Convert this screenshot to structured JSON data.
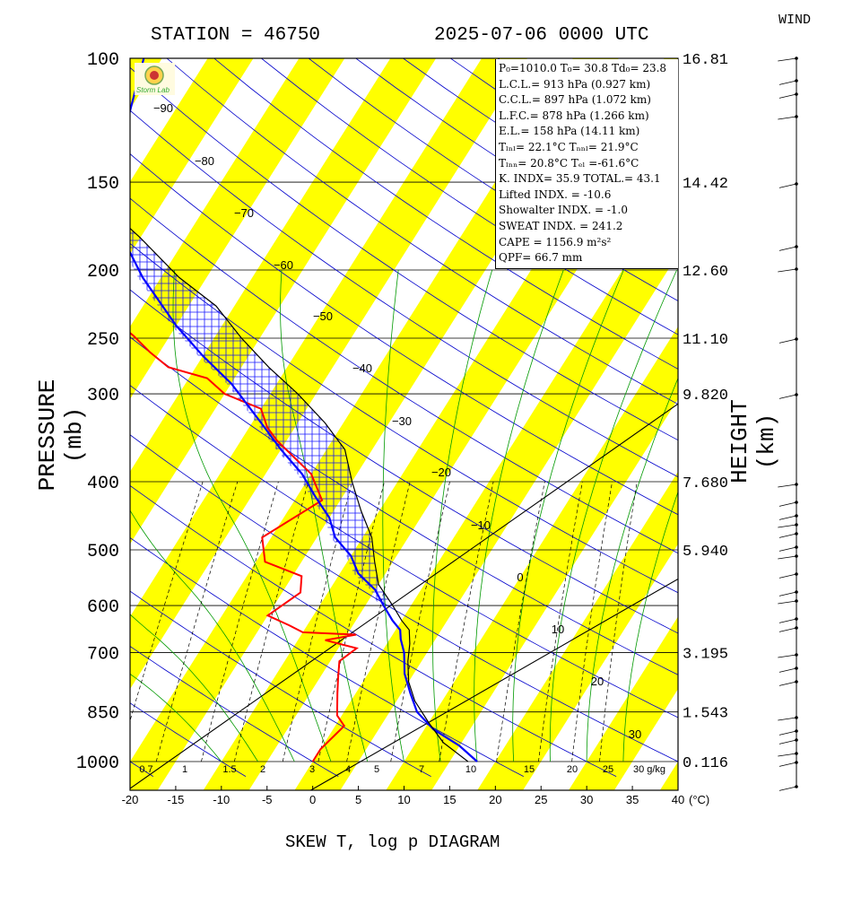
{
  "header": {
    "station": "STATION = 46750",
    "datetime": "2025-07-06 0000 UTC",
    "wind_title": "WIND",
    "footer": "SKEW T, log p DIAGRAM",
    "y_label_left": "PRESSURE (mb)",
    "y_label_right": "HEIGHT (km)",
    "t_unit": "(°C)"
  },
  "colors": {
    "isotherm_band": "#ffff00",
    "temperature": "#ff0000",
    "dewpoint": "#ff0000",
    "parcel": "#0000ff",
    "dry_adiabat": "#0000cc",
    "moist_adiabat": "#009900",
    "mixing_ratio": "#000000"
  },
  "info_box": {
    "lines": [
      "P₀=1010.0  T₀= 30.8  Td₀= 23.8",
      "L.C.L.= 913 hPa (0.927 km)",
      "C.C.L.= 897 hPa (1.072 km)",
      "L.F.C.= 878 hPa (1.266 km)",
      "E.L.= 158 hPa (14.11 km)",
      "Tₗₙₗ= 22.1°C  Tₙₙₗ= 21.9°C",
      "Tₗₙₙ= 20.8°C  Tₑₗ =-61.6°C",
      "K. INDX= 35.9   TOTAL.= 43.1",
      "Lifted INDX. = -10.6",
      "Showalter INDX. =    -1.0",
      "SWEAT INDX. =   241.2",
      "CAPE = 1156.9 m²s²",
      "QPF= 66.7 mm"
    ]
  },
  "chart_data": {
    "type": "line",
    "title": "SKEW T, log p DIAGRAM",
    "xlabel": "(°C)",
    "ylabel": "PRESSURE (mb)",
    "y2label": "HEIGHT (km)",
    "xlim": [
      -20,
      40
    ],
    "ylim": [
      1000,
      100
    ],
    "y_scale": "log",
    "x_ticks": [
      -20,
      -15,
      -10,
      -5,
      0,
      5,
      10,
      15,
      20,
      25,
      30,
      35,
      40
    ],
    "pressure_levels": [
      100,
      150,
      200,
      250,
      300,
      400,
      500,
      600,
      700,
      850,
      1000
    ],
    "height_labels": [
      "16.81",
      "14.42",
      "12.60",
      "11.10",
      "9.820",
      "7.680",
      "5.940",
      "",
      "3.195",
      "1.543",
      "0.116"
    ],
    "isotherm_labels": [
      -90,
      -80,
      -70,
      -60,
      -50,
      -40,
      -30,
      -20,
      -10,
      0,
      10,
      20,
      30
    ],
    "mixing_ratio_labels": [
      "0.7",
      "1",
      "1.5",
      "2",
      "3",
      "4",
      "5",
      "7",
      "10",
      "15",
      "20",
      "25",
      "30 g/kg"
    ],
    "series": [
      {
        "name": "dewpoint",
        "points": [
          [
            -71,
            100
          ],
          [
            -73,
            150
          ],
          [
            -61,
            190
          ],
          [
            -59,
            205
          ],
          [
            -64,
            218
          ],
          [
            -55,
            222
          ],
          [
            -51,
            240
          ],
          [
            -49,
            248
          ],
          [
            -46,
            262
          ],
          [
            -43,
            275
          ],
          [
            -38,
            285
          ],
          [
            -35,
            300
          ],
          [
            -30,
            315
          ],
          [
            -28,
            335
          ],
          [
            -26,
            350
          ],
          [
            -20,
            390
          ],
          [
            -17,
            425
          ],
          [
            -21,
            480
          ],
          [
            -19,
            520
          ],
          [
            -14,
            545
          ],
          [
            -13,
            575
          ],
          [
            -15,
            620
          ],
          [
            -12,
            640
          ],
          [
            -10,
            655
          ],
          [
            -4,
            660
          ],
          [
            -7,
            672
          ],
          [
            -3,
            690
          ],
          [
            -4,
            720
          ],
          [
            -3,
            760
          ],
          [
            -2,
            800
          ],
          [
            -0.5,
            860
          ],
          [
            1,
            890
          ],
          [
            0,
            960
          ],
          [
            0,
            1000
          ]
        ]
      },
      {
        "name": "parcel",
        "points": [
          [
            -67,
            100
          ],
          [
            -62,
            150
          ],
          [
            -58,
            175
          ],
          [
            -52,
            205
          ],
          [
            -45,
            240
          ],
          [
            -40,
            265
          ],
          [
            -35,
            290
          ],
          [
            -29,
            330
          ],
          [
            -25,
            360
          ],
          [
            -21,
            390
          ],
          [
            -18,
            420
          ],
          [
            -15,
            450
          ],
          [
            -13,
            480
          ],
          [
            -10,
            510
          ],
          [
            -8,
            540
          ],
          [
            -5,
            570
          ],
          [
            -3,
            600
          ],
          [
            -1,
            630
          ],
          [
            0.5,
            650
          ],
          [
            1.2,
            670
          ],
          [
            2.5,
            700
          ],
          [
            4,
            750
          ],
          [
            6,
            800
          ],
          [
            8,
            850
          ],
          [
            11,
            900
          ],
          [
            15,
            950
          ],
          [
            18,
            1000
          ]
        ]
      },
      {
        "name": "environment",
        "points": [
          [
            -60,
            165
          ],
          [
            -55,
            180
          ],
          [
            -48,
            205
          ],
          [
            -42,
            225
          ],
          [
            -37,
            250
          ],
          [
            -32,
            275
          ],
          [
            -27,
            300
          ],
          [
            -22,
            330
          ],
          [
            -18,
            360
          ],
          [
            -15,
            400
          ],
          [
            -12,
            440
          ],
          [
            -9,
            480
          ],
          [
            -7,
            520
          ],
          [
            -5,
            560
          ],
          [
            -2,
            600
          ],
          [
            0,
            630
          ],
          [
            1.5,
            650
          ],
          [
            2.5,
            680
          ],
          [
            3.5,
            720
          ],
          [
            5,
            770
          ],
          [
            7,
            820
          ],
          [
            10,
            880
          ],
          [
            13,
            940
          ],
          [
            17,
            1000
          ]
        ]
      }
    ]
  }
}
